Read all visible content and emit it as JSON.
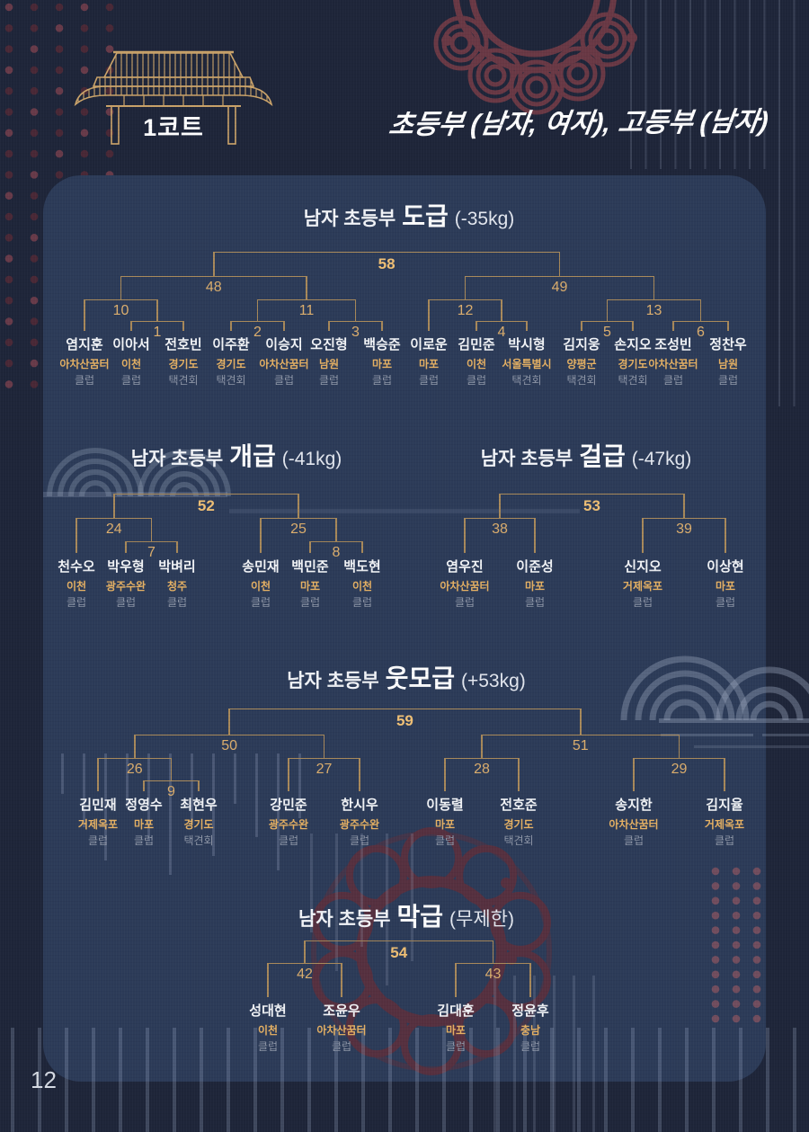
{
  "page_number": "12",
  "header": {
    "court": "1코트",
    "divisions": "초등부 (남자, 여자), 고등부 (남자)",
    "roof_icon": "hanok-roof-icon"
  },
  "colors": {
    "background": "#1e2539",
    "panel": "#2c3b58",
    "bracket_line": "#a8895a",
    "match_number": "#dcae6d",
    "final_match_number": "#f0c075",
    "player_name": "#f2f4f7",
    "region": "#e6b163",
    "org": "#8e96a7",
    "maroon_deco": "#5b2f3d"
  },
  "brackets": [
    {
      "title": {
        "prefix": "남자 초등부",
        "grade": "도급",
        "weight": "(-35kg)"
      },
      "players": [
        {
          "name": "염지훈",
          "region": "아차산꿈터",
          "org": "클럽"
        },
        {
          "name": "이아서",
          "region": "이천",
          "org": "클럽"
        },
        {
          "name": "전호빈",
          "region": "경기도",
          "org": "택견회"
        },
        {
          "name": "이주환",
          "region": "경기도",
          "org": "택견회"
        },
        {
          "name": "이승지",
          "region": "아차산꿈터",
          "org": "클럽"
        },
        {
          "name": "오진형",
          "region": "남원",
          "org": "클럽"
        },
        {
          "name": "백승준",
          "region": "마포",
          "org": "클럽"
        },
        {
          "name": "이로운",
          "region": "마포",
          "org": "클럽"
        },
        {
          "name": "김민준",
          "region": "이천",
          "org": "클럽"
        },
        {
          "name": "박시형",
          "region": "서울특별시",
          "org": "택견회"
        },
        {
          "name": "김지웅",
          "region": "양평군",
          "org": "택견회"
        },
        {
          "name": "손지오",
          "region": "경기도",
          "org": "택견회"
        },
        {
          "name": "조성빈",
          "region": "아차산꿈터",
          "org": "클럽"
        },
        {
          "name": "정찬우",
          "region": "남원",
          "org": "클럽"
        }
      ],
      "tree": {
        "m": "58",
        "c": [
          {
            "m": "48",
            "c": [
              {
                "m": "10",
                "c": [
                  {
                    "p": 0
                  },
                  {
                    "m": "1",
                    "c": [
                      {
                        "p": 1
                      },
                      {
                        "p": 2
                      }
                    ]
                  }
                ]
              },
              {
                "m": "11",
                "c": [
                  {
                    "m": "2",
                    "c": [
                      {
                        "p": 3
                      },
                      {
                        "p": 4
                      }
                    ]
                  },
                  {
                    "m": "3",
                    "c": [
                      {
                        "p": 5
                      },
                      {
                        "p": 6
                      }
                    ]
                  }
                ]
              }
            ]
          },
          {
            "m": "49",
            "c": [
              {
                "m": "12",
                "c": [
                  {
                    "p": 7
                  },
                  {
                    "m": "4",
                    "c": [
                      {
                        "p": 8
                      },
                      {
                        "p": 9
                      }
                    ]
                  }
                ]
              },
              {
                "m": "13",
                "c": [
                  {
                    "m": "5",
                    "c": [
                      {
                        "p": 10
                      },
                      {
                        "p": 11
                      }
                    ]
                  },
                  {
                    "m": "6",
                    "c": [
                      {
                        "p": 12
                      },
                      {
                        "p": 13
                      }
                    ]
                  }
                ]
              }
            ]
          }
        ]
      }
    },
    {
      "title": {
        "prefix": "남자 초등부",
        "grade": "개급",
        "weight": "(-41kg)"
      },
      "players": [
        {
          "name": "천수오",
          "region": "이천",
          "org": "클럽"
        },
        {
          "name": "박우형",
          "region": "광주수완",
          "org": "클럽"
        },
        {
          "name": "박벼리",
          "region": "청주",
          "org": "클럽"
        },
        {
          "name": "송민재",
          "region": "이천",
          "org": "클럽"
        },
        {
          "name": "백민준",
          "region": "마포",
          "org": "클럽"
        },
        {
          "name": "백도현",
          "region": "이천",
          "org": "클럽"
        }
      ],
      "tree": {
        "m": "52",
        "c": [
          {
            "m": "24",
            "c": [
              {
                "p": 0
              },
              {
                "m": "7",
                "c": [
                  {
                    "p": 1
                  },
                  {
                    "p": 2
                  }
                ]
              }
            ]
          },
          {
            "m": "25",
            "c": [
              {
                "p": 3
              },
              {
                "m": "8",
                "c": [
                  {
                    "p": 4
                  },
                  {
                    "p": 5
                  }
                ]
              }
            ]
          }
        ]
      }
    },
    {
      "title": {
        "prefix": "남자 초등부",
        "grade": "걸급",
        "weight": "(-47kg)"
      },
      "players": [
        {
          "name": "염우진",
          "region": "아차산꿈터",
          "org": "클럽"
        },
        {
          "name": "이준성",
          "region": "마포",
          "org": "클럽"
        },
        {
          "name": "신지오",
          "region": "거제옥포",
          "org": "클럽"
        },
        {
          "name": "이상현",
          "region": "마포",
          "org": "클럽"
        }
      ],
      "tree": {
        "m": "53",
        "c": [
          {
            "m": "38",
            "c": [
              {
                "p": 0
              },
              {
                "p": 1
              }
            ]
          },
          {
            "m": "39",
            "c": [
              {
                "p": 2
              },
              {
                "p": 3
              }
            ]
          }
        ]
      }
    },
    {
      "title": {
        "prefix": "남자 초등부",
        "grade": "웃모급",
        "weight": "(+53kg)"
      },
      "players": [
        {
          "name": "김민재",
          "region": "거제옥포",
          "org": "클럽"
        },
        {
          "name": "정영수",
          "region": "마포",
          "org": "클럽"
        },
        {
          "name": "최현우",
          "region": "경기도",
          "org": "택견회"
        },
        {
          "name": "강민준",
          "region": "광주수완",
          "org": "클럽"
        },
        {
          "name": "한시우",
          "region": "광주수완",
          "org": "클럽"
        },
        {
          "name": "이동렬",
          "region": "마포",
          "org": "클럽"
        },
        {
          "name": "전호준",
          "region": "경기도",
          "org": "택견회"
        },
        {
          "name": "송지한",
          "region": "아차산꿈터",
          "org": "클럽"
        },
        {
          "name": "김지율",
          "region": "거제옥포",
          "org": "클럽"
        }
      ],
      "tree": {
        "m": "59",
        "c": [
          {
            "m": "50",
            "c": [
              {
                "m": "26",
                "c": [
                  {
                    "p": 0
                  },
                  {
                    "m": "9",
                    "c": [
                      {
                        "p": 1
                      },
                      {
                        "p": 2
                      }
                    ]
                  }
                ]
              },
              {
                "m": "27",
                "c": [
                  {
                    "p": 3
                  },
                  {
                    "p": 4
                  }
                ]
              }
            ]
          },
          {
            "m": "51",
            "c": [
              {
                "m": "28",
                "c": [
                  {
                    "p": 5
                  },
                  {
                    "p": 6
                  }
                ]
              },
              {
                "m": "29",
                "c": [
                  {
                    "p": 7
                  },
                  {
                    "p": 8
                  }
                ]
              }
            ]
          }
        ]
      }
    },
    {
      "title": {
        "prefix": "남자 초등부",
        "grade": "막급",
        "weight": "(무제한)"
      },
      "players": [
        {
          "name": "성대현",
          "region": "이천",
          "org": "클럽"
        },
        {
          "name": "조윤우",
          "region": "아차산꿈터",
          "org": "클럽"
        },
        {
          "name": "김대훈",
          "region": "마포",
          "org": "클럽"
        },
        {
          "name": "정윤후",
          "region": "충남",
          "org": "클럽"
        }
      ],
      "tree": {
        "m": "54",
        "c": [
          {
            "m": "42",
            "c": [
              {
                "p": 0
              },
              {
                "p": 1
              }
            ]
          },
          {
            "m": "43",
            "c": [
              {
                "p": 2
              },
              {
                "p": 3
              }
            ]
          }
        ]
      }
    }
  ]
}
